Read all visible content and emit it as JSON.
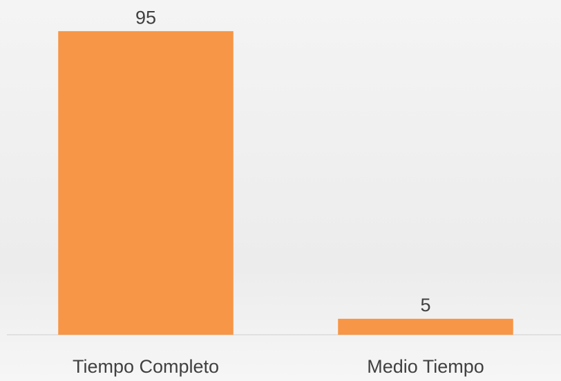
{
  "chart_data": {
    "type": "bar",
    "categories": [
      "Tiempo Completo",
      "Medio Tiempo"
    ],
    "values": [
      95,
      5
    ],
    "color": "#f79646",
    "ylim": [
      0,
      100
    ]
  }
}
